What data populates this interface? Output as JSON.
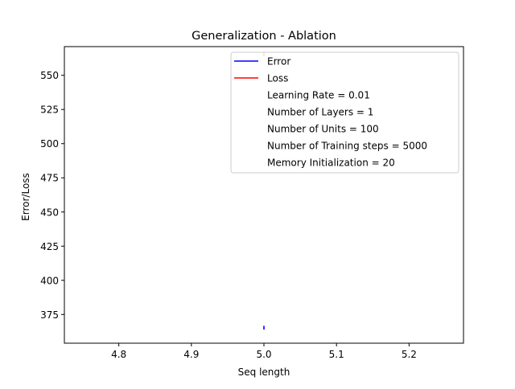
{
  "chart_data": {
    "type": "line",
    "title": "Generalization - Ablation",
    "xlabel": "Seq length",
    "ylabel": "Error/Loss",
    "xlim": [
      4.725,
      5.275
    ],
    "ylim": [
      354,
      571
    ],
    "xticks": [
      4.8,
      4.9,
      5.0,
      5.1,
      5.2
    ],
    "xtick_labels": [
      "4.8",
      "4.9",
      "5.0",
      "5.1",
      "5.2"
    ],
    "yticks": [
      375,
      400,
      425,
      450,
      475,
      500,
      525,
      550
    ],
    "ytick_labels": [
      "375",
      "400",
      "425",
      "450",
      "475",
      "500",
      "525",
      "550"
    ],
    "grid": false,
    "legend_position": "upper right",
    "series": [
      {
        "name": "Error",
        "color": "#0000ff",
        "x": [
          5.0
        ],
        "y": [
          365.3
        ],
        "y_span": [
          364,
          366.7
        ]
      },
      {
        "name": "Loss",
        "color": "#ff0000",
        "x": [
          5.0
        ],
        "y": [
          565.5
        ],
        "y_span": [
          564,
          567
        ]
      }
    ],
    "legend_extra_entries": [
      "Learning Rate = 0.01",
      "Number of Layers = 1",
      "Number of Units = 100",
      "Number of Training steps = 5000",
      "Memory Initialization = 20"
    ]
  }
}
